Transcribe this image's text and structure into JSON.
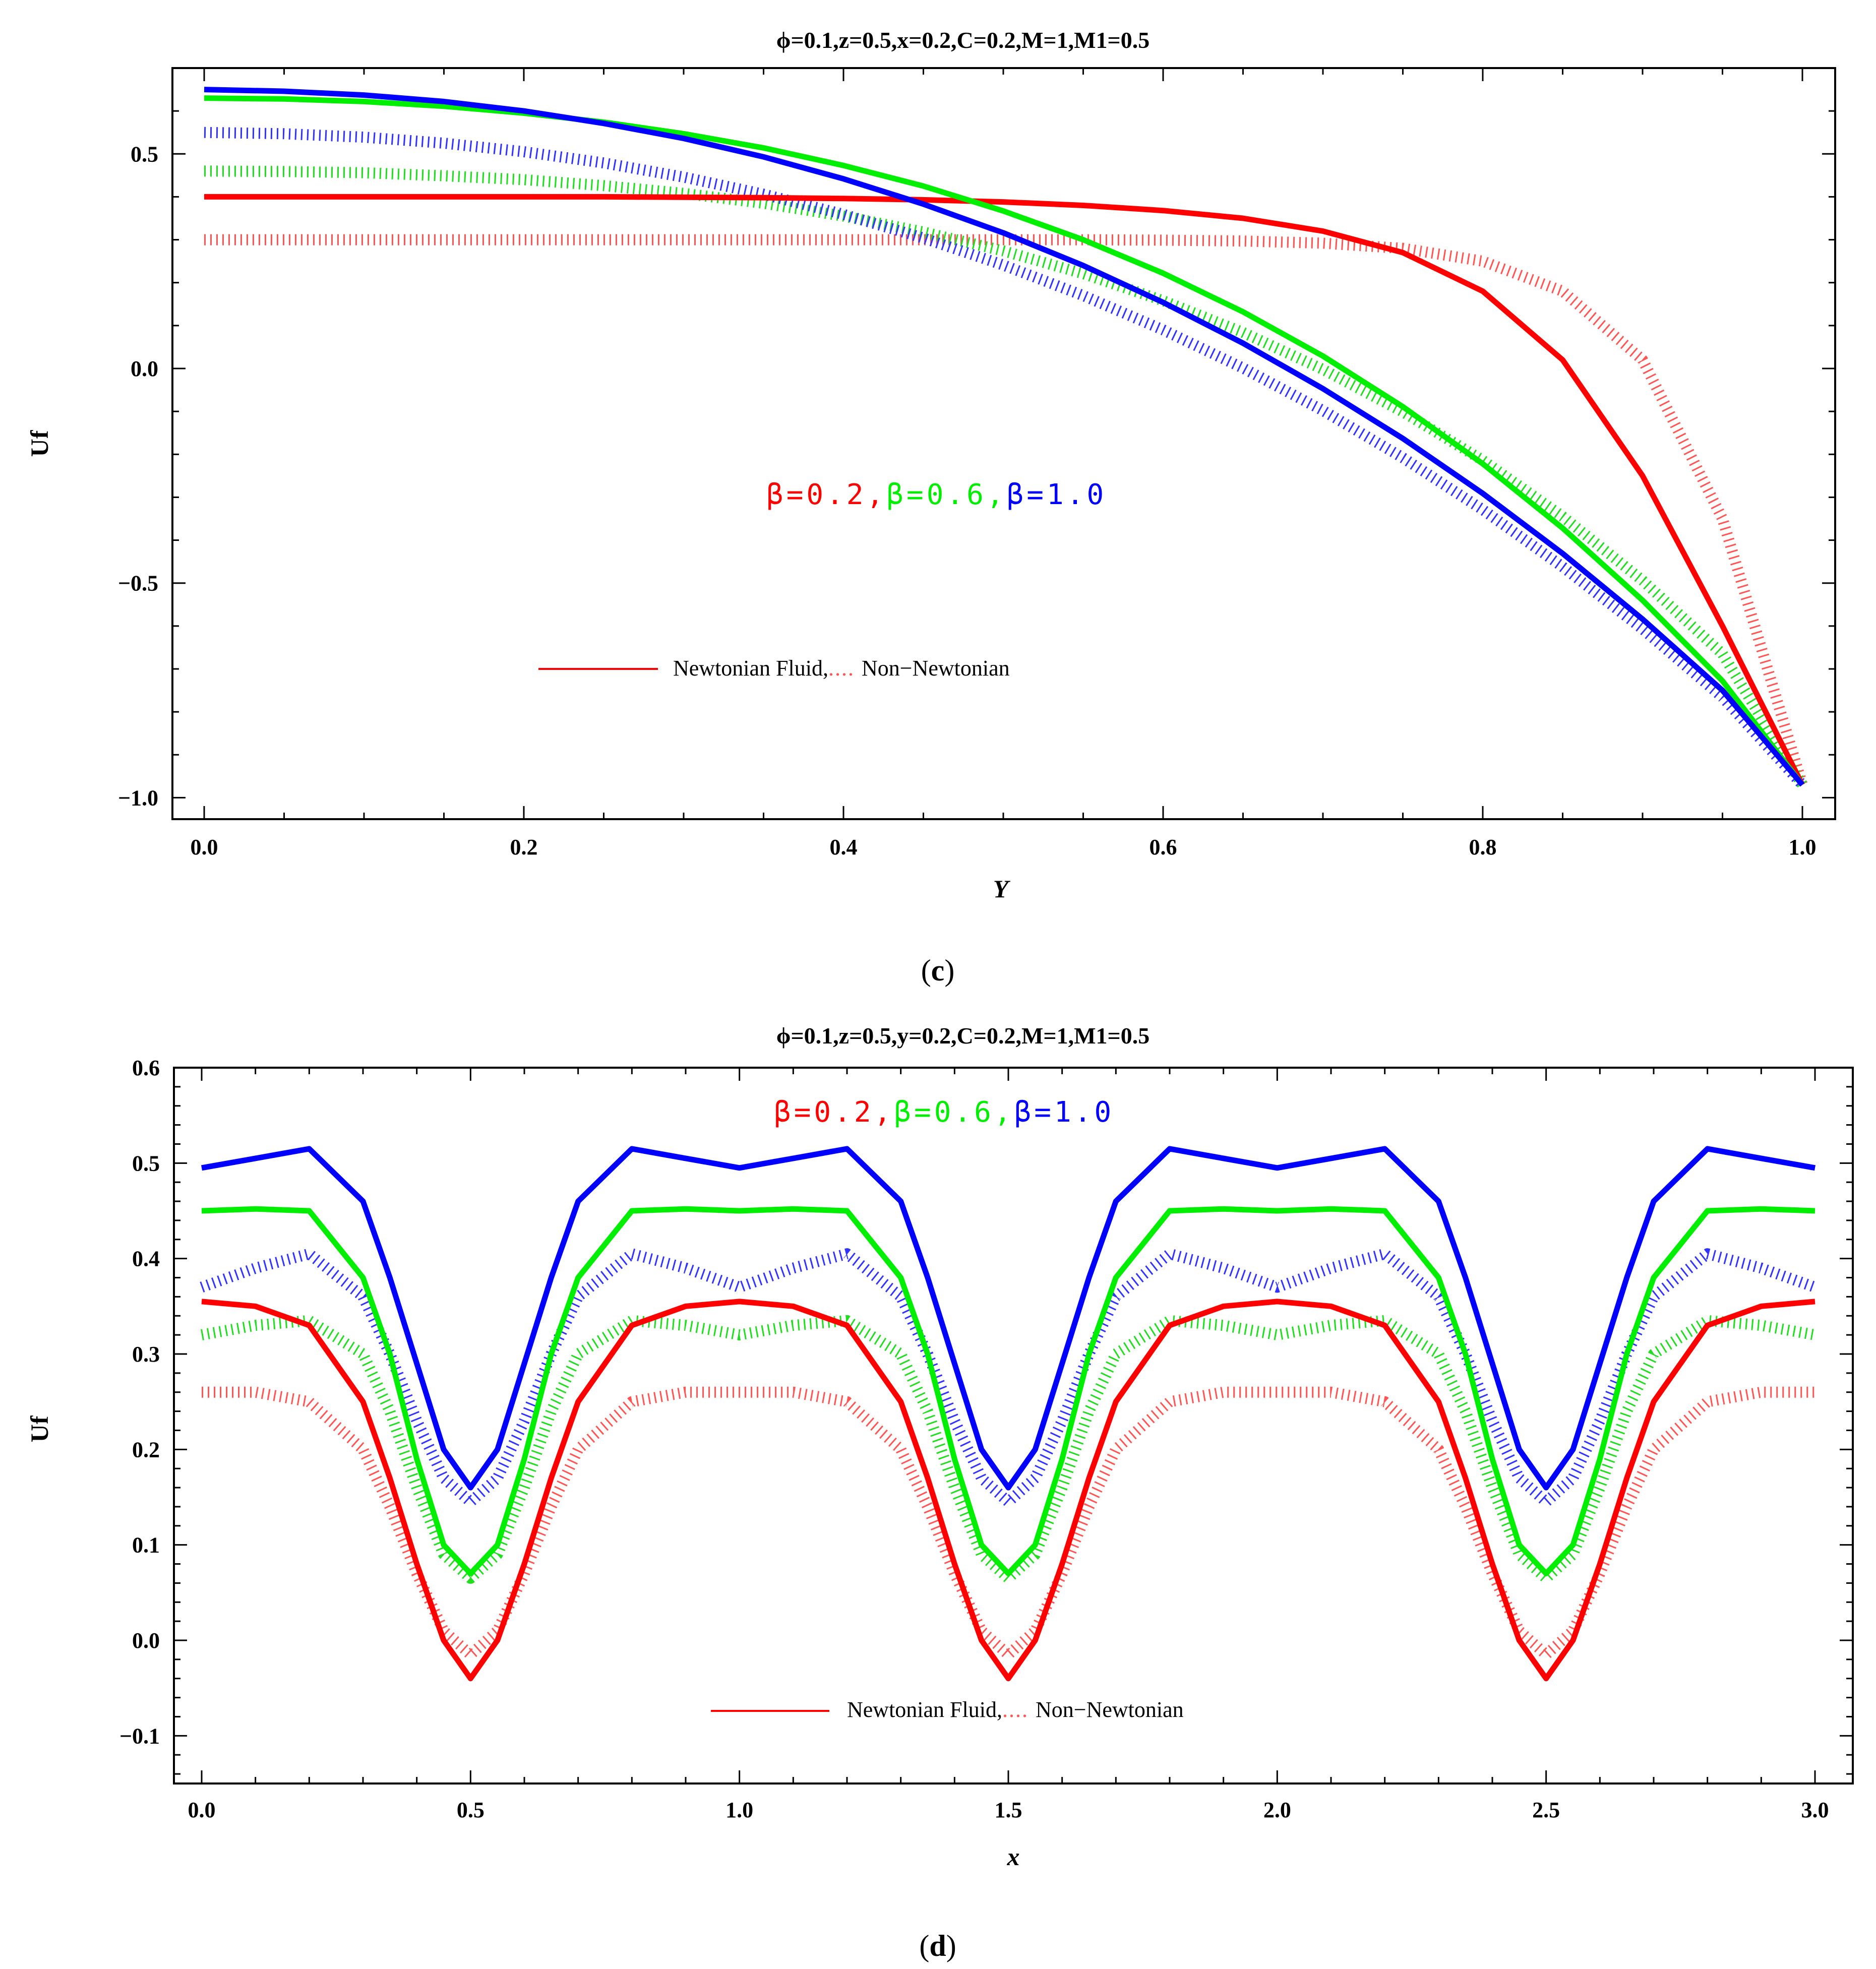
{
  "colors": {
    "red": "#ff0000",
    "green": "#00ee00",
    "blue": "#0000ff",
    "red_dot": "#ff5555",
    "green_dot": "#22dd22",
    "blue_dot": "#3333ff"
  },
  "chart_data": [
    {
      "type": "line",
      "title": "ϕ=0.1,z=0.5,x=0.2,C=0.2,M=1,M1=0.5",
      "xlabel": "Y",
      "ylabel": "Uf",
      "xlim": [
        0,
        1
      ],
      "ylim": [
        -1.05,
        0.7
      ],
      "xticks": [
        "0.0",
        "0.2",
        "0.4",
        "0.6",
        "0.8",
        "1.0"
      ],
      "yticks": [
        "0.5",
        "0.0",
        "−0.5",
        "−1.0"
      ],
      "beta_labels": [
        {
          "text": "β=0.2",
          "color": "#ff0000"
        },
        {
          "text": ",",
          "color": "#ff0000"
        },
        {
          "text": "β=0.6",
          "color": "#00ee00"
        },
        {
          "text": ",",
          "color": "#00ee00"
        },
        {
          "text": "β=1.0",
          "color": "#0000ff"
        }
      ],
      "legend": {
        "solid": "Newtonian Fluid,",
        "dotted": "Non−Newtonian"
      },
      "caption_open": "(",
      "caption_letter": "c",
      "caption_close": ")",
      "x": [
        0,
        0.05,
        0.1,
        0.15,
        0.2,
        0.25,
        0.3,
        0.35,
        0.4,
        0.45,
        0.5,
        0.55,
        0.6,
        0.65,
        0.7,
        0.75,
        0.8,
        0.85,
        0.9,
        0.95,
        1.0
      ],
      "series": [
        {
          "name": "β=0.2 Newtonian",
          "color": "#ff0000",
          "style": "solid",
          "values": [
            0.4,
            0.4,
            0.4,
            0.4,
            0.4,
            0.4,
            0.399,
            0.398,
            0.396,
            0.393,
            0.388,
            0.38,
            0.368,
            0.35,
            0.32,
            0.27,
            0.18,
            0.02,
            -0.25,
            -0.6,
            -0.97
          ]
        },
        {
          "name": "β=0.2 Non-Newtonian",
          "color": "#ff5555",
          "style": "dotted",
          "values": [
            0.3,
            0.3,
            0.3,
            0.3,
            0.3,
            0.3,
            0.3,
            0.3,
            0.3,
            0.3,
            0.3,
            0.3,
            0.299,
            0.297,
            0.292,
            0.28,
            0.25,
            0.18,
            0.02,
            -0.35,
            -0.97
          ]
        },
        {
          "name": "β=0.6 Newtonian",
          "color": "#00ee00",
          "style": "solid",
          "values": [
            0.63,
            0.628,
            0.622,
            0.611,
            0.595,
            0.574,
            0.547,
            0.514,
            0.473,
            0.425,
            0.367,
            0.3,
            0.222,
            0.132,
            0.029,
            -0.089,
            -0.222,
            -0.372,
            -0.54,
            -0.728,
            -0.97
          ]
        },
        {
          "name": "β=0.6 Non-Newtonian",
          "color": "#22dd22",
          "style": "dotted",
          "values": [
            0.46,
            0.459,
            0.456,
            0.449,
            0.44,
            0.426,
            0.408,
            0.385,
            0.355,
            0.318,
            0.274,
            0.221,
            0.158,
            0.084,
            -0.002,
            -0.101,
            -0.214,
            -0.345,
            -0.494,
            -0.665,
            -0.97
          ]
        },
        {
          "name": "β=1.0 Newtonian",
          "color": "#0000ff",
          "style": "solid",
          "values": [
            0.65,
            0.646,
            0.637,
            0.622,
            0.6,
            0.571,
            0.536,
            0.493,
            0.442,
            0.383,
            0.316,
            0.24,
            0.154,
            0.059,
            -0.047,
            -0.163,
            -0.291,
            -0.431,
            -0.584,
            -0.75,
            -0.97
          ]
        },
        {
          "name": "β=1.0 Non-Newtonian",
          "color": "#3333ff",
          "style": "dotted",
          "values": [
            0.55,
            0.547,
            0.539,
            0.525,
            0.505,
            0.479,
            0.446,
            0.406,
            0.359,
            0.304,
            0.241,
            0.17,
            0.09,
            0.001,
            -0.098,
            -0.208,
            -0.329,
            -0.462,
            -0.607,
            -0.766,
            -0.97
          ]
        }
      ]
    },
    {
      "type": "line",
      "title": "ϕ=0.1,z=0.5,y=0.2,C=0.2,M=1,M1=0.5",
      "xlabel": "x",
      "ylabel": "Uf",
      "xlim": [
        0,
        3
      ],
      "ylim": [
        -0.15,
        0.6
      ],
      "xticks": [
        "0.0",
        "0.5",
        "1.0",
        "1.5",
        "2.0",
        "2.5",
        "3.0"
      ],
      "yticks": [
        "0.6",
        "0.5",
        "0.4",
        "0.3",
        "0.2",
        "0.1",
        "0.0",
        "−0.1"
      ],
      "beta_labels": [
        {
          "text": "β=0.2",
          "color": "#ff0000"
        },
        {
          "text": ",",
          "color": "#ff0000"
        },
        {
          "text": "β=0.6",
          "color": "#00ee00"
        },
        {
          "text": ",",
          "color": "#00ee00"
        },
        {
          "text": "β=1.0",
          "color": "#0000ff"
        }
      ],
      "legend": {
        "solid": "Newtonian Fluid,",
        "dotted": "Non−Newtonian"
      },
      "caption_open": "(",
      "caption_letter": "d",
      "caption_close": ")",
      "x": [
        0,
        0.1,
        0.2,
        0.3,
        0.35,
        0.4,
        0.45,
        0.5,
        0.55,
        0.6,
        0.65,
        0.7,
        0.8,
        0.9,
        1.0,
        1.1,
        1.2,
        1.3,
        1.35,
        1.4,
        1.45,
        1.5,
        1.55,
        1.6,
        1.65,
        1.7,
        1.8,
        1.9,
        2.0,
        2.1,
        2.2,
        2.3,
        2.35,
        2.4,
        2.45,
        2.5,
        2.55,
        2.6,
        2.65,
        2.7,
        2.8,
        2.9,
        3.0
      ],
      "series": [
        {
          "name": "β=0.2 Newtonian",
          "color": "#ff0000",
          "style": "solid",
          "values": [
            0.355,
            0.35,
            0.33,
            0.25,
            0.17,
            0.08,
            0.0,
            -0.04,
            0.0,
            0.08,
            0.17,
            0.25,
            0.33,
            0.35,
            0.355,
            0.35,
            0.33,
            0.25,
            0.17,
            0.08,
            0.0,
            -0.04,
            0.0,
            0.08,
            0.17,
            0.25,
            0.33,
            0.35,
            0.355,
            0.35,
            0.33,
            0.25,
            0.17,
            0.08,
            0.0,
            -0.04,
            0.0,
            0.08,
            0.17,
            0.25,
            0.33,
            0.35,
            0.355
          ]
        },
        {
          "name": "β=0.2 Non-Newtonian",
          "color": "#ff5555",
          "style": "dotted",
          "values": [
            0.26,
            0.26,
            0.25,
            0.2,
            0.14,
            0.07,
            0.01,
            -0.015,
            0.01,
            0.07,
            0.14,
            0.2,
            0.25,
            0.26,
            0.26,
            0.26,
            0.25,
            0.2,
            0.14,
            0.07,
            0.01,
            -0.015,
            0.01,
            0.07,
            0.14,
            0.2,
            0.25,
            0.26,
            0.26,
            0.26,
            0.25,
            0.2,
            0.14,
            0.07,
            0.01,
            -0.015,
            0.01,
            0.07,
            0.14,
            0.2,
            0.25,
            0.26,
            0.26
          ]
        },
        {
          "name": "β=0.6 Newtonian",
          "color": "#00ee00",
          "style": "solid",
          "values": [
            0.45,
            0.452,
            0.45,
            0.38,
            0.3,
            0.19,
            0.1,
            0.07,
            0.1,
            0.19,
            0.3,
            0.38,
            0.45,
            0.452,
            0.45,
            0.452,
            0.45,
            0.38,
            0.3,
            0.19,
            0.1,
            0.07,
            0.1,
            0.19,
            0.3,
            0.38,
            0.45,
            0.452,
            0.45,
            0.452,
            0.45,
            0.38,
            0.3,
            0.19,
            0.1,
            0.07,
            0.1,
            0.19,
            0.3,
            0.38,
            0.45,
            0.452,
            0.45
          ]
        },
        {
          "name": "β=0.6 Non-Newtonian",
          "color": "#22dd22",
          "style": "dotted",
          "values": [
            0.32,
            0.33,
            0.335,
            0.3,
            0.24,
            0.16,
            0.09,
            0.065,
            0.09,
            0.16,
            0.24,
            0.3,
            0.335,
            0.33,
            0.32,
            0.33,
            0.335,
            0.3,
            0.24,
            0.16,
            0.09,
            0.065,
            0.09,
            0.16,
            0.24,
            0.3,
            0.335,
            0.33,
            0.32,
            0.33,
            0.335,
            0.3,
            0.24,
            0.16,
            0.09,
            0.065,
            0.09,
            0.16,
            0.24,
            0.3,
            0.335,
            0.33,
            0.32
          ]
        },
        {
          "name": "β=1.0 Newtonian",
          "color": "#0000ff",
          "style": "solid",
          "values": [
            0.495,
            0.505,
            0.515,
            0.46,
            0.38,
            0.29,
            0.2,
            0.16,
            0.2,
            0.29,
            0.38,
            0.46,
            0.515,
            0.505,
            0.495,
            0.505,
            0.515,
            0.46,
            0.38,
            0.29,
            0.2,
            0.16,
            0.2,
            0.29,
            0.38,
            0.46,
            0.515,
            0.505,
            0.495,
            0.505,
            0.515,
            0.46,
            0.38,
            0.29,
            0.2,
            0.16,
            0.2,
            0.29,
            0.38,
            0.46,
            0.515,
            0.505,
            0.495
          ]
        },
        {
          "name": "β=1.0 Non-Newtonian",
          "color": "#3333ff",
          "style": "dotted",
          "values": [
            0.37,
            0.39,
            0.405,
            0.36,
            0.3,
            0.23,
            0.17,
            0.145,
            0.17,
            0.23,
            0.3,
            0.36,
            0.405,
            0.39,
            0.37,
            0.39,
            0.405,
            0.36,
            0.3,
            0.23,
            0.17,
            0.145,
            0.17,
            0.23,
            0.3,
            0.36,
            0.405,
            0.39,
            0.37,
            0.39,
            0.405,
            0.36,
            0.3,
            0.23,
            0.17,
            0.145,
            0.17,
            0.23,
            0.3,
            0.36,
            0.405,
            0.39,
            0.37
          ]
        }
      ]
    }
  ]
}
